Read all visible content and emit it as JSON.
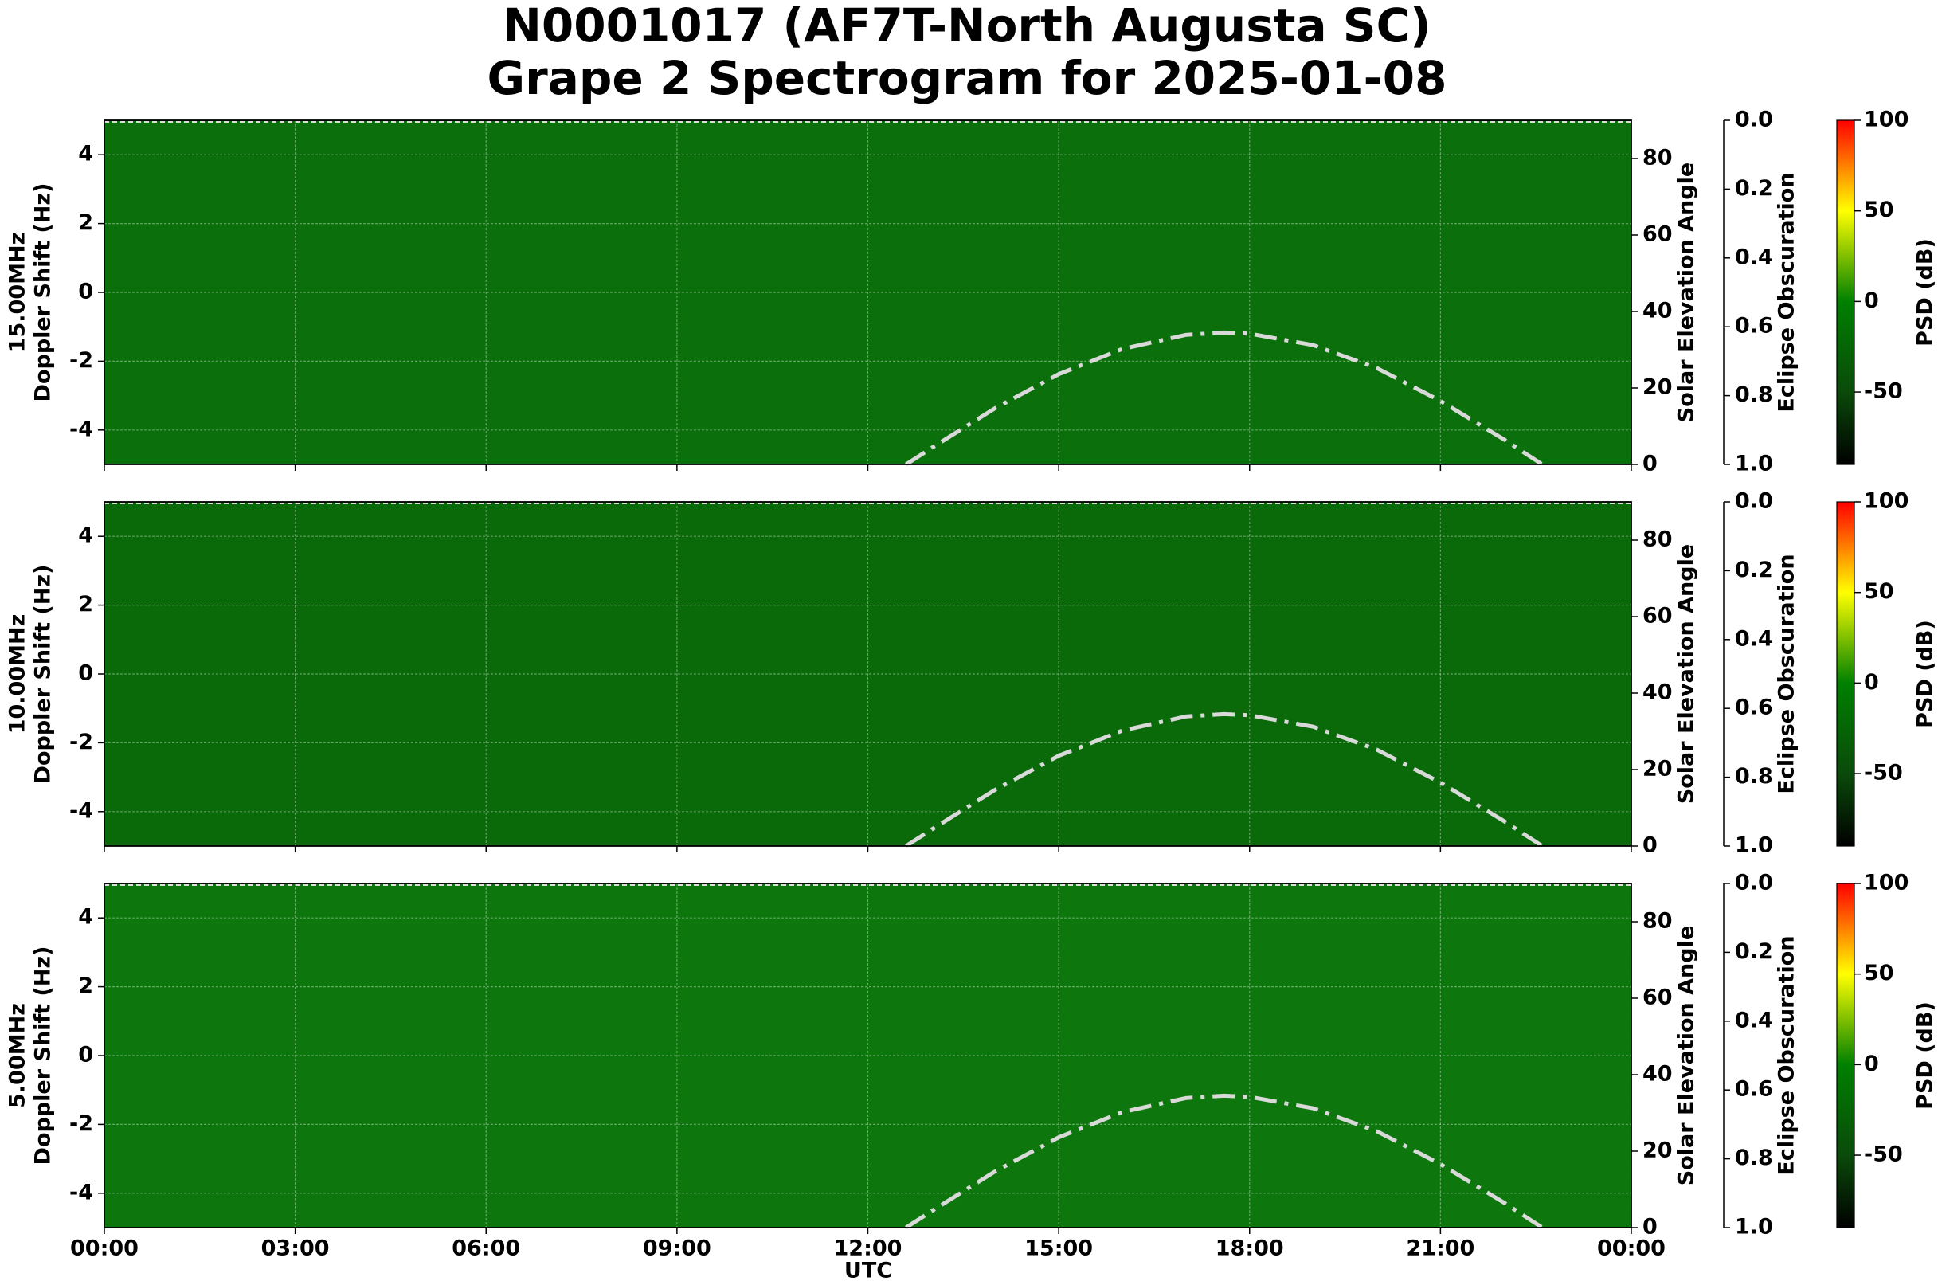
{
  "suptitle": [
    "N0001017 (AF7T-North Augusta SC)",
    "Grape 2 Spectrogram for 2025-01-08"
  ],
  "x_label": "UTC",
  "chart_data": [
    {
      "type": "spectrogram",
      "ylabel": [
        "15.00MHz",
        "Doppler Shift (Hz)"
      ],
      "spectrogram_color": "#0b6f0b",
      "xlim": [
        0,
        24
      ],
      "xticks": [
        0,
        3,
        6,
        9,
        12,
        15,
        18,
        21,
        24
      ],
      "ylim": [
        -5,
        5
      ],
      "yticks": [
        -4,
        -2,
        0,
        2,
        4
      ],
      "grid": true,
      "y2label": "Solar Elevation Angle",
      "y2lim": [
        0,
        90
      ],
      "y2ticks": [
        0,
        20,
        40,
        60,
        80
      ],
      "solar_elevation": {
        "color": "#d9d9d9",
        "x": [
          12.6,
          13,
          14,
          15,
          16,
          17,
          17.6,
          18,
          19,
          20,
          21,
          22,
          22.6
        ],
        "values": [
          0,
          4.3,
          14.7,
          23.6,
          30.2,
          33.9,
          34.5,
          34.2,
          31.2,
          25.2,
          16.6,
          6.5,
          0
        ]
      },
      "y3label": "Eclipse Obscuration",
      "y3lim": [
        0,
        1
      ],
      "y3ticks": [
        {
          "value": 0,
          "label": "0.0"
        },
        {
          "value": 0.2,
          "label": "0.2"
        },
        {
          "value": 0.4,
          "label": "0.4"
        },
        {
          "value": 0.6,
          "label": "0.6"
        },
        {
          "value": 0.8,
          "label": "0.8"
        },
        {
          "value": 1,
          "label": "1.0"
        }
      ],
      "colorbar_label": "PSD (dB)",
      "clim": [
        -90,
        100
      ],
      "cticks": [
        -50,
        0,
        50,
        100
      ],
      "colormap": [
        {
          "value": -90,
          "color": "#000000"
        },
        {
          "value": -50,
          "color": "#0a4a0a"
        },
        {
          "value": 0,
          "color": "#008000"
        },
        {
          "value": 50,
          "color": "#ffff00"
        },
        {
          "value": 100,
          "color": "#ff0000"
        }
      ]
    },
    {
      "type": "spectrogram",
      "ylabel": [
        "10.00MHz",
        "Doppler Shift (Hz)"
      ],
      "spectrogram_color": "#0a6a0a",
      "xlim": [
        0,
        24
      ],
      "xticks": [
        0,
        3,
        6,
        9,
        12,
        15,
        18,
        21,
        24
      ],
      "ylim": [
        -5,
        5
      ],
      "yticks": [
        -4,
        -2,
        0,
        2,
        4
      ],
      "grid": true,
      "y2label": "Solar Elevation Angle",
      "y2lim": [
        0,
        90
      ],
      "y2ticks": [
        0,
        20,
        40,
        60,
        80
      ],
      "solar_elevation": {
        "color": "#d9d9d9",
        "x": [
          12.6,
          13,
          14,
          15,
          16,
          17,
          17.6,
          18,
          19,
          20,
          21,
          22,
          22.6
        ],
        "values": [
          0,
          4.3,
          14.7,
          23.6,
          30.2,
          33.9,
          34.5,
          34.2,
          31.2,
          25.2,
          16.6,
          6.5,
          0
        ]
      },
      "y3label": "Eclipse Obscuration",
      "y3lim": [
        0,
        1
      ],
      "y3ticks": [
        {
          "value": 0,
          "label": "0.0"
        },
        {
          "value": 0.2,
          "label": "0.2"
        },
        {
          "value": 0.4,
          "label": "0.4"
        },
        {
          "value": 0.6,
          "label": "0.6"
        },
        {
          "value": 0.8,
          "label": "0.8"
        },
        {
          "value": 1,
          "label": "1.0"
        }
      ],
      "colorbar_label": "PSD (dB)",
      "clim": [
        -90,
        100
      ],
      "cticks": [
        -50,
        0,
        50,
        100
      ],
      "colormap": [
        {
          "value": -90,
          "color": "#000000"
        },
        {
          "value": -50,
          "color": "#0a4a0a"
        },
        {
          "value": 0,
          "color": "#008000"
        },
        {
          "value": 50,
          "color": "#ffff00"
        },
        {
          "value": 100,
          "color": "#ff0000"
        }
      ]
    },
    {
      "type": "spectrogram",
      "ylabel": [
        "5.00MHz",
        "Doppler Shift (Hz)"
      ],
      "spectrogram_color": "#0d770d",
      "xlim": [
        0,
        24
      ],
      "xticks": [
        {
          "value": 0,
          "label": "00:00"
        },
        {
          "value": 3,
          "label": "03:00"
        },
        {
          "value": 6,
          "label": "06:00"
        },
        {
          "value": 9,
          "label": "09:00"
        },
        {
          "value": 12,
          "label": "12:00"
        },
        {
          "value": 15,
          "label": "15:00"
        },
        {
          "value": 18,
          "label": "18:00"
        },
        {
          "value": 21,
          "label": "21:00"
        },
        {
          "value": 24,
          "label": "00:00"
        }
      ],
      "ylim": [
        -5,
        5
      ],
      "yticks": [
        -4,
        -2,
        0,
        2,
        4
      ],
      "grid": true,
      "y2label": "Solar Elevation Angle",
      "y2lim": [
        0,
        90
      ],
      "y2ticks": [
        0,
        20,
        40,
        60,
        80
      ],
      "solar_elevation": {
        "color": "#d9d9d9",
        "x": [
          12.6,
          13,
          14,
          15,
          16,
          17,
          17.6,
          18,
          19,
          20,
          21,
          22,
          22.6
        ],
        "values": [
          0,
          4.3,
          14.7,
          23.6,
          30.2,
          33.9,
          34.5,
          34.2,
          31.2,
          25.2,
          16.6,
          6.5,
          0
        ]
      },
      "y3label": "Eclipse Obscuration",
      "y3lim": [
        0,
        1
      ],
      "y3ticks": [
        {
          "value": 0,
          "label": "0.0"
        },
        {
          "value": 0.2,
          "label": "0.2"
        },
        {
          "value": 0.4,
          "label": "0.4"
        },
        {
          "value": 0.6,
          "label": "0.6"
        },
        {
          "value": 0.8,
          "label": "0.8"
        },
        {
          "value": 1,
          "label": "1.0"
        }
      ],
      "colorbar_label": "PSD (dB)",
      "clim": [
        -90,
        100
      ],
      "cticks": [
        -50,
        0,
        50,
        100
      ],
      "colormap": [
        {
          "value": -90,
          "color": "#000000"
        },
        {
          "value": -50,
          "color": "#0a4a0a"
        },
        {
          "value": 0,
          "color": "#008000"
        },
        {
          "value": 50,
          "color": "#ffff00"
        },
        {
          "value": 100,
          "color": "#ff0000"
        }
      ]
    }
  ]
}
